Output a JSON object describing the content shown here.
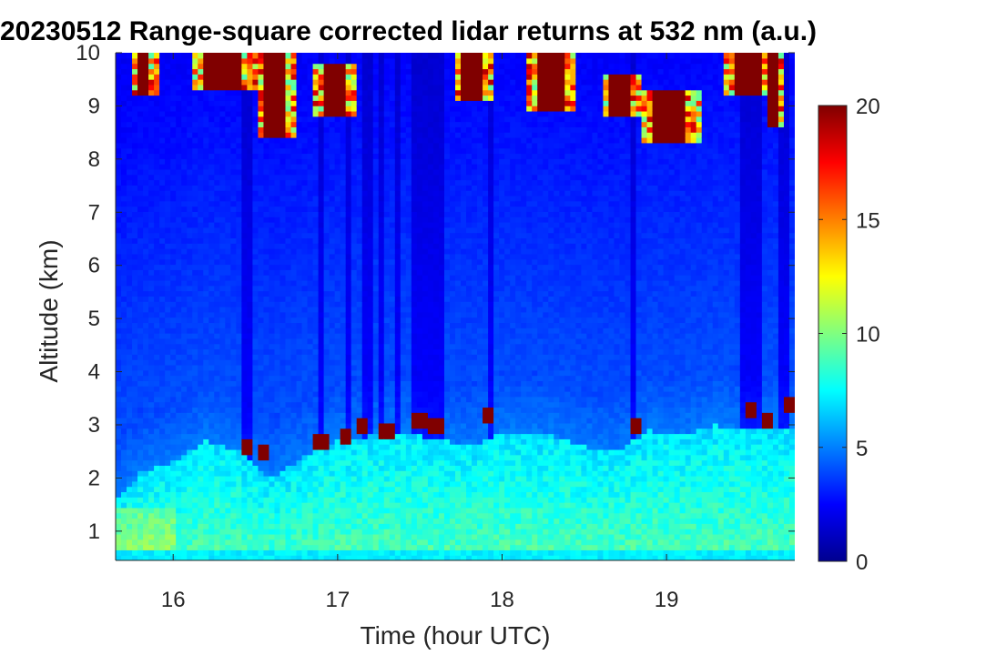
{
  "chart_data": {
    "type": "heatmap",
    "title": "20230512  Range-square corrected lidar returns at 532 nm (a.u.)",
    "xlabel": "Time (hour UTC)",
    "ylabel": "Altitude (km)",
    "xlim": [
      15.65,
      19.78
    ],
    "ylim": [
      0.45,
      10.0
    ],
    "xticks": [
      16,
      17,
      18,
      19
    ],
    "yticks": [
      1,
      2,
      3,
      4,
      5,
      6,
      7,
      8,
      9,
      10
    ],
    "colorbar": {
      "range": [
        0,
        20
      ],
      "ticks": [
        0,
        5,
        10,
        15,
        20
      ],
      "colormap": "jet"
    },
    "boundary_layer_top_km": [
      [
        15.65,
        1.55
      ],
      [
        15.8,
        2.1
      ],
      [
        16.0,
        2.3
      ],
      [
        16.2,
        2.7
      ],
      [
        16.4,
        2.5
      ],
      [
        16.6,
        2.0
      ],
      [
        16.8,
        2.4
      ],
      [
        17.0,
        2.7
      ],
      [
        17.2,
        2.8
      ],
      [
        17.5,
        2.8
      ],
      [
        17.8,
        2.6
      ],
      [
        18.0,
        2.85
      ],
      [
        18.3,
        2.8
      ],
      [
        18.5,
        2.6
      ],
      [
        18.7,
        2.5
      ],
      [
        18.9,
        2.9
      ],
      [
        19.1,
        2.8
      ],
      [
        19.3,
        3.0
      ],
      [
        19.5,
        2.9
      ],
      [
        19.78,
        2.9
      ]
    ],
    "cirrus_clouds": [
      {
        "t_start": 15.75,
        "t_end": 15.9,
        "base_km": 9.2,
        "top_km": 10.0
      },
      {
        "t_start": 16.1,
        "t_end": 16.5,
        "base_km": 9.3,
        "top_km": 10.0
      },
      {
        "t_start": 16.5,
        "t_end": 16.75,
        "base_km": 8.4,
        "top_km": 10.0
      },
      {
        "t_start": 16.85,
        "t_end": 17.1,
        "base_km": 8.8,
        "top_km": 9.8
      },
      {
        "t_start": 17.7,
        "t_end": 17.95,
        "base_km": 9.1,
        "top_km": 10.0
      },
      {
        "t_start": 18.15,
        "t_end": 18.45,
        "base_km": 8.9,
        "top_km": 10.0
      },
      {
        "t_start": 18.6,
        "t_end": 18.85,
        "base_km": 8.8,
        "top_km": 9.6
      },
      {
        "t_start": 18.85,
        "t_end": 19.2,
        "base_km": 8.3,
        "top_km": 9.3
      },
      {
        "t_start": 19.35,
        "t_end": 19.65,
        "base_km": 9.2,
        "top_km": 10.0
      },
      {
        "t_start": 19.6,
        "t_end": 19.7,
        "base_km": 8.6,
        "top_km": 10.0
      }
    ],
    "low_clouds": [
      {
        "t": 16.45,
        "km": 2.5
      },
      {
        "t": 16.55,
        "km": 2.45
      },
      {
        "t": 16.9,
        "km": 2.6
      },
      {
        "t": 17.05,
        "km": 2.75
      },
      {
        "t": 17.15,
        "km": 2.9
      },
      {
        "t": 17.3,
        "km": 2.8
      },
      {
        "t": 17.5,
        "km": 3.05
      },
      {
        "t": 17.6,
        "km": 2.95
      },
      {
        "t": 17.9,
        "km": 3.1
      },
      {
        "t": 18.8,
        "km": 2.95
      },
      {
        "t": 19.5,
        "km": 3.2
      },
      {
        "t": 19.6,
        "km": 3.0
      },
      {
        "t": 19.75,
        "km": 3.3
      }
    ]
  }
}
